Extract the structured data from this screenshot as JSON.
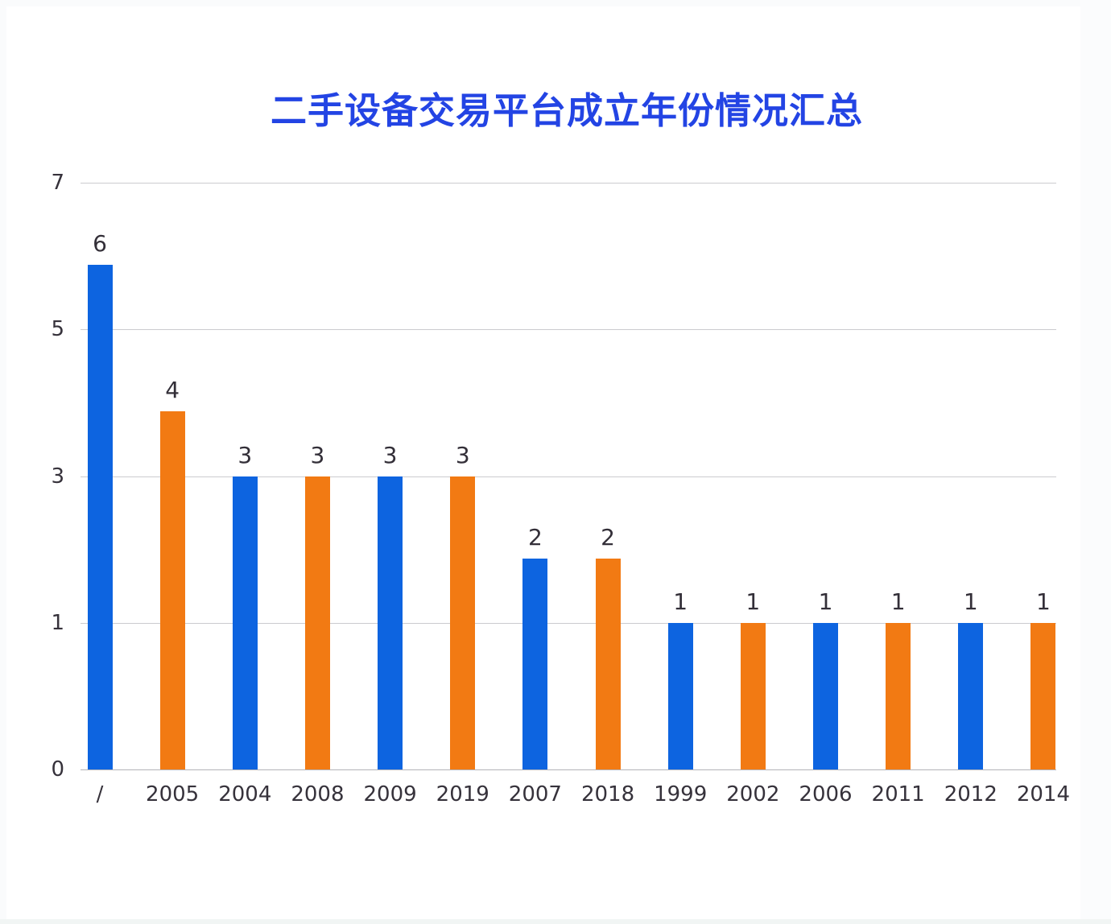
{
  "chart_data": {
    "type": "bar",
    "title": "二手设备交易平台成立年份情况汇总",
    "categories": [
      "/",
      "2005",
      "2004",
      "2008",
      "2009",
      "2019",
      "2007",
      "2018",
      "1999",
      "2002",
      "2006",
      "2011",
      "2012",
      "2014"
    ],
    "values": [
      6,
      4,
      3,
      3,
      3,
      3,
      2,
      2,
      1,
      1,
      1,
      1,
      1,
      1
    ],
    "bar_colors": [
      "blue",
      "orange",
      "blue",
      "orange",
      "blue",
      "orange",
      "blue",
      "orange",
      "blue",
      "orange",
      "blue",
      "orange",
      "blue",
      "orange"
    ],
    "palette": {
      "blue": "#0d64e0",
      "orange": "#f27a13"
    },
    "yticks": [
      7,
      5,
      3,
      1,
      0
    ],
    "xlabel": "",
    "ylabel": "",
    "data_labels": true,
    "legend": "none",
    "grid": "horizontal",
    "y_axis_note": "ticks 0,1,3,5,7 rendered evenly spaced (non-linear scale)",
    "colors": {
      "title": "#2344e4",
      "text": "#36323b",
      "gridline": "#cbcbcf",
      "axis_line": "#b3b3b8"
    }
  }
}
